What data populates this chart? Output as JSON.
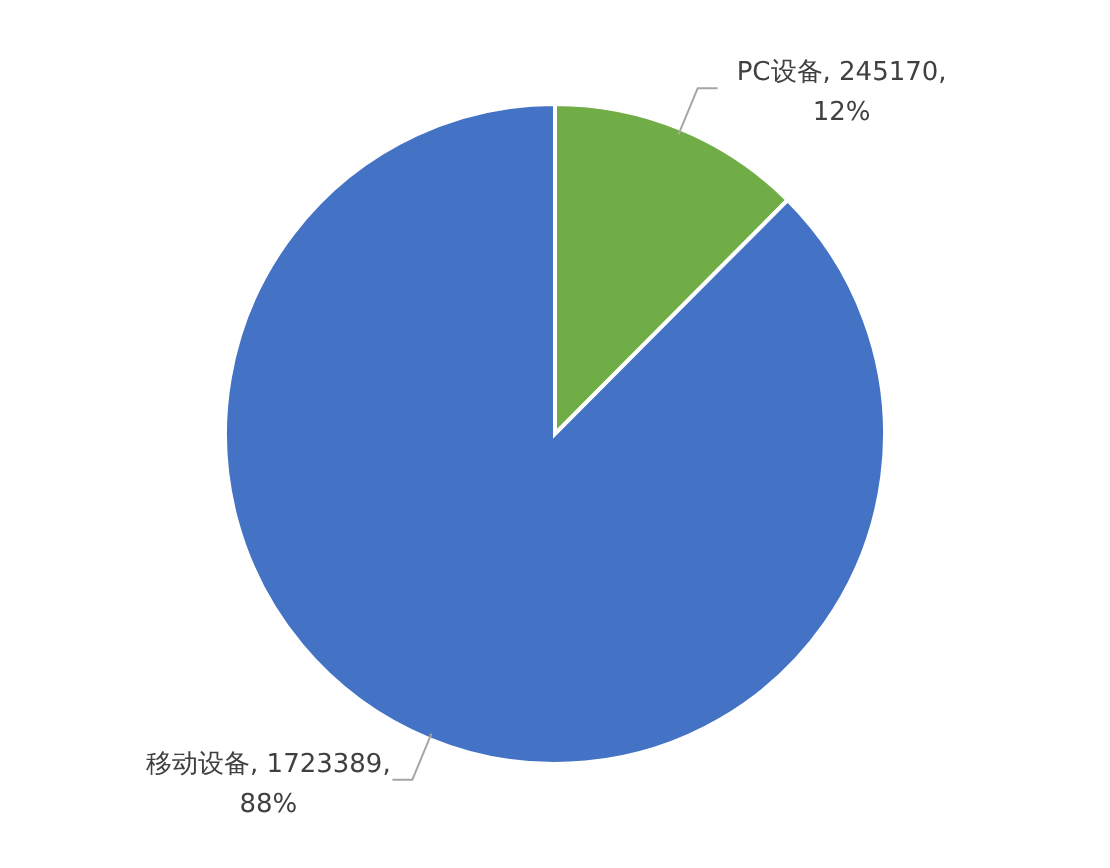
{
  "chart_data": {
    "type": "pie",
    "categories": [
      "PC设备",
      "移动设备"
    ],
    "values": [
      245170,
      1723389
    ],
    "colors": [
      "#70ad47",
      "#4472c4"
    ],
    "value_labels": [
      "245170, 12%",
      "1723389, 88%"
    ]
  }
}
